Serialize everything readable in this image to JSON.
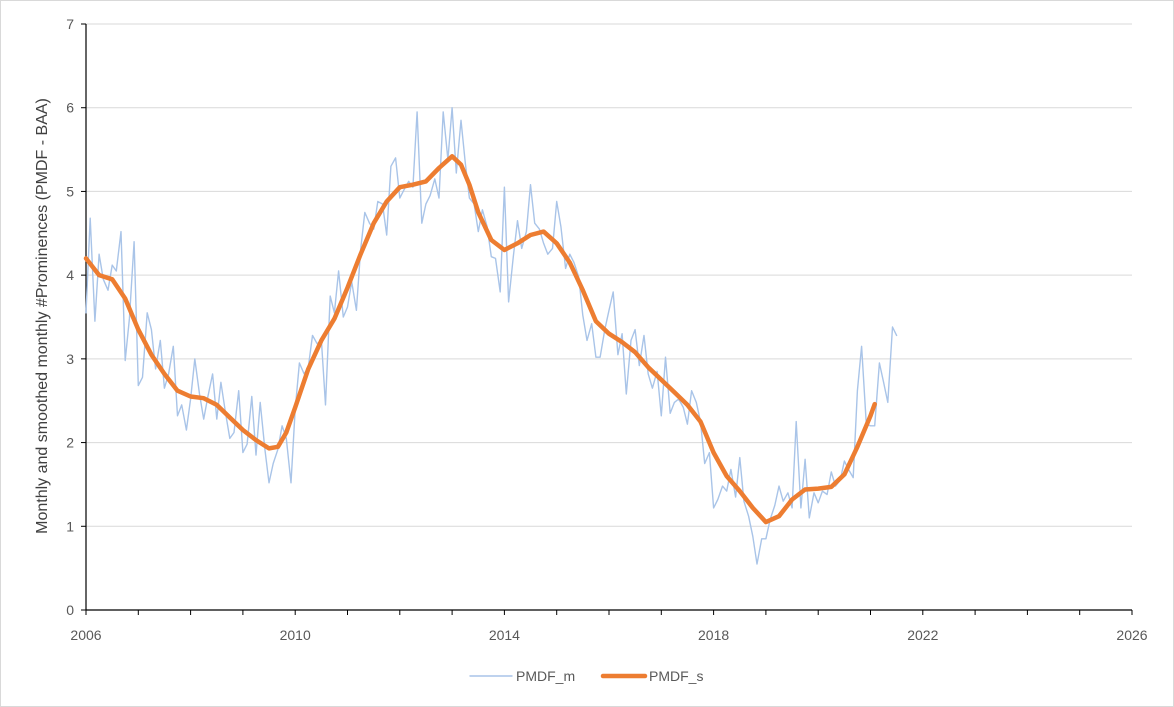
{
  "chart_data": {
    "type": "line",
    "title": "",
    "xlabel": "",
    "ylabel": "Monthly and smoothed monthly #Prominences (PMDF - BAA)",
    "xlim": [
      2006,
      2026
    ],
    "ylim": [
      0,
      7
    ],
    "x_ticks": [
      "2006",
      "2010",
      "2014",
      "2018",
      "2022",
      "2026"
    ],
    "y_ticks": [
      "0",
      "1",
      "2",
      "3",
      "4",
      "5",
      "6",
      "7"
    ],
    "grid": "horizontal",
    "legend_position": "bottom",
    "series": [
      {
        "name": "PMDF_m",
        "color": "#a9c4e8",
        "width": 1.4,
        "points": [
          [
            2006.0,
            3.55
          ],
          [
            2006.08,
            4.68
          ],
          [
            2006.17,
            3.45
          ],
          [
            2006.25,
            4.25
          ],
          [
            2006.33,
            3.95
          ],
          [
            2006.42,
            3.82
          ],
          [
            2006.5,
            4.12
          ],
          [
            2006.58,
            4.05
          ],
          [
            2006.67,
            4.52
          ],
          [
            2006.75,
            2.98
          ],
          [
            2006.83,
            3.48
          ],
          [
            2006.92,
            4.4
          ],
          [
            2007.0,
            2.68
          ],
          [
            2007.08,
            2.78
          ],
          [
            2007.17,
            3.55
          ],
          [
            2007.25,
            3.35
          ],
          [
            2007.33,
            2.88
          ],
          [
            2007.42,
            3.22
          ],
          [
            2007.5,
            2.65
          ],
          [
            2007.58,
            2.82
          ],
          [
            2007.67,
            3.15
          ],
          [
            2007.75,
            2.32
          ],
          [
            2007.83,
            2.45
          ],
          [
            2007.92,
            2.15
          ],
          [
            2008.0,
            2.52
          ],
          [
            2008.08,
            3.0
          ],
          [
            2008.17,
            2.58
          ],
          [
            2008.25,
            2.28
          ],
          [
            2008.33,
            2.55
          ],
          [
            2008.42,
            2.82
          ],
          [
            2008.5,
            2.28
          ],
          [
            2008.58,
            2.72
          ],
          [
            2008.67,
            2.35
          ],
          [
            2008.75,
            2.05
          ],
          [
            2008.83,
            2.12
          ],
          [
            2008.92,
            2.62
          ],
          [
            2009.0,
            1.88
          ],
          [
            2009.08,
            1.98
          ],
          [
            2009.17,
            2.55
          ],
          [
            2009.25,
            1.85
          ],
          [
            2009.33,
            2.48
          ],
          [
            2009.42,
            1.92
          ],
          [
            2009.5,
            1.52
          ],
          [
            2009.58,
            1.75
          ],
          [
            2009.67,
            1.92
          ],
          [
            2009.75,
            2.2
          ],
          [
            2009.83,
            2.05
          ],
          [
            2009.92,
            1.52
          ],
          [
            2010.0,
            2.4
          ],
          [
            2010.08,
            2.95
          ],
          [
            2010.17,
            2.82
          ],
          [
            2010.25,
            2.9
          ],
          [
            2010.33,
            3.28
          ],
          [
            2010.42,
            3.18
          ],
          [
            2010.5,
            3.22
          ],
          [
            2010.58,
            2.45
          ],
          [
            2010.67,
            3.75
          ],
          [
            2010.75,
            3.55
          ],
          [
            2010.83,
            4.05
          ],
          [
            2010.92,
            3.5
          ],
          [
            2011.0,
            3.62
          ],
          [
            2011.08,
            3.92
          ],
          [
            2011.17,
            3.58
          ],
          [
            2011.25,
            4.3
          ],
          [
            2011.33,
            4.75
          ],
          [
            2011.42,
            4.62
          ],
          [
            2011.5,
            4.55
          ],
          [
            2011.58,
            4.88
          ],
          [
            2011.67,
            4.85
          ],
          [
            2011.75,
            4.48
          ],
          [
            2011.83,
            5.3
          ],
          [
            2011.92,
            5.4
          ],
          [
            2012.0,
            4.92
          ],
          [
            2012.08,
            5.02
          ],
          [
            2012.17,
            5.12
          ],
          [
            2012.25,
            5.05
          ],
          [
            2012.33,
            5.95
          ],
          [
            2012.42,
            4.62
          ],
          [
            2012.5,
            4.85
          ],
          [
            2012.58,
            4.95
          ],
          [
            2012.67,
            5.15
          ],
          [
            2012.75,
            4.92
          ],
          [
            2012.83,
            5.95
          ],
          [
            2012.92,
            5.38
          ],
          [
            2013.0,
            6.0
          ],
          [
            2013.08,
            5.22
          ],
          [
            2013.17,
            5.85
          ],
          [
            2013.25,
            5.35
          ],
          [
            2013.33,
            4.92
          ],
          [
            2013.42,
            4.85
          ],
          [
            2013.5,
            4.52
          ],
          [
            2013.58,
            4.78
          ],
          [
            2013.67,
            4.58
          ],
          [
            2013.75,
            4.22
          ],
          [
            2013.83,
            4.2
          ],
          [
            2013.92,
            3.8
          ],
          [
            2014.0,
            5.05
          ],
          [
            2014.08,
            3.68
          ],
          [
            2014.17,
            4.22
          ],
          [
            2014.25,
            4.65
          ],
          [
            2014.33,
            4.32
          ],
          [
            2014.42,
            4.52
          ],
          [
            2014.5,
            5.08
          ],
          [
            2014.58,
            4.62
          ],
          [
            2014.67,
            4.55
          ],
          [
            2014.75,
            4.38
          ],
          [
            2014.83,
            4.25
          ],
          [
            2014.92,
            4.32
          ],
          [
            2015.0,
            4.88
          ],
          [
            2015.08,
            4.58
          ],
          [
            2015.17,
            4.08
          ],
          [
            2015.25,
            4.25
          ],
          [
            2015.33,
            4.15
          ],
          [
            2015.42,
            3.98
          ],
          [
            2015.5,
            3.52
          ],
          [
            2015.58,
            3.22
          ],
          [
            2015.67,
            3.42
          ],
          [
            2015.75,
            3.02
          ],
          [
            2015.83,
            3.02
          ],
          [
            2015.92,
            3.35
          ],
          [
            2016.0,
            3.58
          ],
          [
            2016.08,
            3.8
          ],
          [
            2016.17,
            3.05
          ],
          [
            2016.25,
            3.3
          ],
          [
            2016.33,
            2.58
          ],
          [
            2016.42,
            3.22
          ],
          [
            2016.5,
            3.35
          ],
          [
            2016.58,
            2.92
          ],
          [
            2016.67,
            3.28
          ],
          [
            2016.75,
            2.82
          ],
          [
            2016.83,
            2.65
          ],
          [
            2016.92,
            2.85
          ],
          [
            2017.0,
            2.32
          ],
          [
            2017.08,
            3.02
          ],
          [
            2017.17,
            2.35
          ],
          [
            2017.25,
            2.48
          ],
          [
            2017.33,
            2.52
          ],
          [
            2017.42,
            2.42
          ],
          [
            2017.5,
            2.22
          ],
          [
            2017.58,
            2.62
          ],
          [
            2017.67,
            2.48
          ],
          [
            2017.75,
            2.25
          ],
          [
            2017.83,
            1.75
          ],
          [
            2017.92,
            1.88
          ],
          [
            2018.0,
            1.22
          ],
          [
            2018.08,
            1.32
          ],
          [
            2018.17,
            1.48
          ],
          [
            2018.25,
            1.42
          ],
          [
            2018.33,
            1.68
          ],
          [
            2018.42,
            1.35
          ],
          [
            2018.5,
            1.82
          ],
          [
            2018.58,
            1.3
          ],
          [
            2018.67,
            1.12
          ],
          [
            2018.75,
            0.88
          ],
          [
            2018.83,
            0.55
          ],
          [
            2018.92,
            0.85
          ],
          [
            2019.0,
            0.85
          ],
          [
            2019.08,
            1.08
          ],
          [
            2019.17,
            1.25
          ],
          [
            2019.25,
            1.48
          ],
          [
            2019.33,
            1.3
          ],
          [
            2019.42,
            1.4
          ],
          [
            2019.5,
            1.22
          ],
          [
            2019.58,
            2.25
          ],
          [
            2019.67,
            1.22
          ],
          [
            2019.75,
            1.8
          ],
          [
            2019.83,
            1.1
          ],
          [
            2019.92,
            1.4
          ],
          [
            2020.0,
            1.28
          ],
          [
            2020.08,
            1.42
          ],
          [
            2020.17,
            1.38
          ],
          [
            2020.25,
            1.65
          ],
          [
            2020.33,
            1.48
          ],
          [
            2020.42,
            1.55
          ],
          [
            2020.5,
            1.78
          ],
          [
            2020.58,
            1.68
          ],
          [
            2020.67,
            1.58
          ],
          [
            2020.75,
            2.62
          ],
          [
            2020.83,
            3.15
          ],
          [
            2020.92,
            2.22
          ],
          [
            2021.0,
            2.2
          ],
          [
            2021.08,
            2.2
          ],
          [
            2021.17,
            2.95
          ],
          [
            2021.25,
            2.72
          ],
          [
            2021.33,
            2.48
          ],
          [
            2021.42,
            3.38
          ],
          [
            2021.5,
            3.28
          ]
        ]
      },
      {
        "name": "PMDF_s",
        "color": "#ed7d31",
        "width": 4.5,
        "points": [
          [
            2006.0,
            4.2
          ],
          [
            2006.25,
            4.0
          ],
          [
            2006.5,
            3.95
          ],
          [
            2006.75,
            3.72
          ],
          [
            2007.0,
            3.35
          ],
          [
            2007.25,
            3.05
          ],
          [
            2007.5,
            2.82
          ],
          [
            2007.75,
            2.62
          ],
          [
            2008.0,
            2.55
          ],
          [
            2008.25,
            2.53
          ],
          [
            2008.5,
            2.45
          ],
          [
            2008.75,
            2.3
          ],
          [
            2009.0,
            2.15
          ],
          [
            2009.25,
            2.03
          ],
          [
            2009.5,
            1.93
          ],
          [
            2009.67,
            1.95
          ],
          [
            2009.83,
            2.12
          ],
          [
            2010.0,
            2.42
          ],
          [
            2010.25,
            2.88
          ],
          [
            2010.5,
            3.22
          ],
          [
            2010.75,
            3.48
          ],
          [
            2011.0,
            3.85
          ],
          [
            2011.25,
            4.25
          ],
          [
            2011.5,
            4.62
          ],
          [
            2011.75,
            4.88
          ],
          [
            2012.0,
            5.05
          ],
          [
            2012.25,
            5.08
          ],
          [
            2012.5,
            5.12
          ],
          [
            2012.75,
            5.28
          ],
          [
            2013.0,
            5.42
          ],
          [
            2013.17,
            5.32
          ],
          [
            2013.33,
            5.08
          ],
          [
            2013.5,
            4.75
          ],
          [
            2013.75,
            4.42
          ],
          [
            2014.0,
            4.3
          ],
          [
            2014.25,
            4.38
          ],
          [
            2014.5,
            4.48
          ],
          [
            2014.75,
            4.52
          ],
          [
            2015.0,
            4.38
          ],
          [
            2015.25,
            4.15
          ],
          [
            2015.5,
            3.82
          ],
          [
            2015.75,
            3.45
          ],
          [
            2016.0,
            3.3
          ],
          [
            2016.25,
            3.2
          ],
          [
            2016.5,
            3.08
          ],
          [
            2016.75,
            2.9
          ],
          [
            2017.0,
            2.75
          ],
          [
            2017.25,
            2.6
          ],
          [
            2017.5,
            2.45
          ],
          [
            2017.75,
            2.25
          ],
          [
            2018.0,
            1.88
          ],
          [
            2018.25,
            1.6
          ],
          [
            2018.5,
            1.42
          ],
          [
            2018.75,
            1.22
          ],
          [
            2019.0,
            1.05
          ],
          [
            2019.25,
            1.12
          ],
          [
            2019.5,
            1.32
          ],
          [
            2019.75,
            1.44
          ],
          [
            2020.0,
            1.45
          ],
          [
            2020.25,
            1.47
          ],
          [
            2020.5,
            1.62
          ],
          [
            2020.75,
            1.95
          ],
          [
            2021.0,
            2.32
          ],
          [
            2021.08,
            2.46
          ]
        ]
      }
    ]
  }
}
